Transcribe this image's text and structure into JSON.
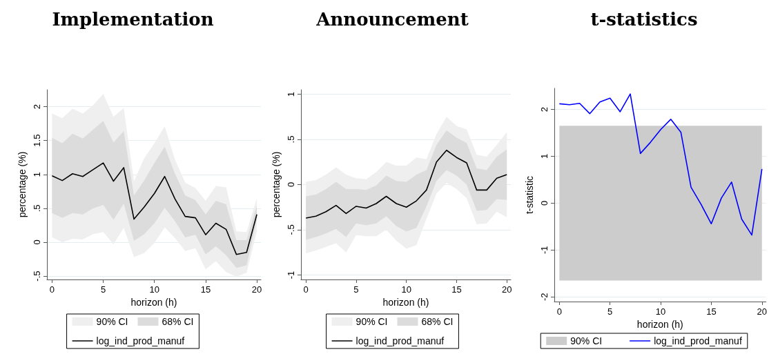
{
  "chart_data": [
    {
      "type": "line",
      "title": "Implementation",
      "xlabel": "horizon (h)",
      "ylabel": "percentage (%)",
      "x": [
        0,
        1,
        2,
        3,
        4,
        5,
        6,
        7,
        8,
        9,
        10,
        11,
        12,
        13,
        14,
        15,
        16,
        17,
        18,
        19,
        20
      ],
      "xlim": [
        -0.5,
        20.4
      ],
      "xticks": [
        0,
        5,
        10,
        15,
        20
      ],
      "ylim": [
        -0.55,
        2.25
      ],
      "yticks": [
        {
          "value": -0.5,
          "label": "-.5"
        },
        0,
        {
          "value": 0.5,
          "label": ".5"
        },
        1,
        {
          "value": 1.5,
          "label": "1.5"
        },
        2
      ],
      "grid": "y",
      "legend": "bottom",
      "series": [
        {
          "name": "90% CI",
          "color": "#efefef",
          "values": [
            null,
            null,
            null,
            null,
            null,
            null,
            null,
            null,
            null,
            null,
            null,
            null,
            null,
            null,
            null,
            null,
            null,
            null,
            null,
            null,
            null
          ],
          "lower": [
            0.07,
            0.0,
            0.05,
            0.04,
            0.12,
            0.15,
            -0.03,
            0.21,
            -0.22,
            -0.16,
            -0.01,
            0.22,
            0.06,
            -0.13,
            -0.09,
            -0.4,
            -0.28,
            -0.44,
            -0.51,
            -0.45,
            0.16
          ],
          "upper": [
            1.9,
            1.83,
            1.97,
            1.9,
            2.02,
            2.19,
            1.85,
            1.98,
            0.9,
            1.24,
            1.46,
            1.71,
            1.22,
            0.88,
            0.8,
            0.61,
            0.83,
            0.81,
            0.16,
            0.15,
            0.65
          ]
        },
        {
          "name": "68% CI",
          "color": "#dcdcdc",
          "values": [
            null,
            null,
            null,
            null,
            null,
            null,
            null,
            null,
            null,
            null,
            null,
            null,
            null,
            null,
            null,
            null,
            null,
            null,
            null,
            null,
            null
          ],
          "lower": [
            0.43,
            0.36,
            0.43,
            0.41,
            0.5,
            0.55,
            0.33,
            0.57,
            0.02,
            0.12,
            0.28,
            0.51,
            0.31,
            0.07,
            0.11,
            -0.18,
            -0.06,
            -0.19,
            -0.38,
            -0.34,
            0.33
          ],
          "upper": [
            1.54,
            1.46,
            1.6,
            1.53,
            1.66,
            1.79,
            1.47,
            1.64,
            0.69,
            0.91,
            1.17,
            1.41,
            1.01,
            0.69,
            0.62,
            0.41,
            0.61,
            0.56,
            0.03,
            0.03,
            0.54
          ]
        },
        {
          "name": "log_ind_prod_manuf",
          "color": "#000000",
          "values": [
            0.98,
            0.91,
            1.01,
            0.97,
            1.07,
            1.17,
            0.9,
            1.1,
            0.34,
            0.52,
            0.72,
            0.97,
            0.64,
            0.38,
            0.36,
            0.11,
            0.28,
            0.19,
            -0.18,
            -0.15,
            0.41
          ]
        }
      ]
    },
    {
      "type": "line",
      "title": "Announcement",
      "xlabel": "horizon (h)",
      "ylabel": "percentage (%)",
      "x": [
        0,
        1,
        2,
        3,
        4,
        5,
        6,
        7,
        8,
        9,
        10,
        11,
        12,
        13,
        14,
        15,
        16,
        17,
        18,
        19,
        20
      ],
      "xlim": [
        -0.5,
        20.4
      ],
      "xticks": [
        0,
        5,
        10,
        15,
        20
      ],
      "ylim": [
        -1.05,
        1.05
      ],
      "yticks": [
        -1,
        {
          "value": -0.5,
          "label": "-.5"
        },
        0,
        {
          "value": 0.5,
          "label": ".5"
        },
        1
      ],
      "grid": "y",
      "legend": "bottom",
      "series": [
        {
          "name": "90% CI",
          "color": "#efefef",
          "values": [
            null,
            null,
            null,
            null,
            null,
            null,
            null,
            null,
            null,
            null,
            null,
            null,
            null,
            null,
            null,
            null,
            null,
            null,
            null,
            null,
            null
          ],
          "lower": [
            -0.76,
            -0.73,
            -0.69,
            -0.65,
            -0.75,
            -0.56,
            -0.57,
            -0.57,
            -0.5,
            -0.62,
            -0.71,
            -0.67,
            -0.38,
            -0.1,
            0.02,
            -0.05,
            -0.15,
            -0.44,
            -0.43,
            -0.3,
            -0.36
          ],
          "upper": [
            0.03,
            0.05,
            0.11,
            0.19,
            0.11,
            0.07,
            0.06,
            0.14,
            0.25,
            0.21,
            0.21,
            0.3,
            0.28,
            0.56,
            0.75,
            0.65,
            0.61,
            0.33,
            0.31,
            0.44,
            0.58
          ]
        },
        {
          "name": "68% CI",
          "color": "#dcdcdc",
          "values": [
            null,
            null,
            null,
            null,
            null,
            null,
            null,
            null,
            null,
            null,
            null,
            null,
            null,
            null,
            null,
            null,
            null,
            null,
            null,
            null,
            null
          ],
          "lower": [
            -0.61,
            -0.58,
            -0.54,
            -0.49,
            -0.58,
            -0.43,
            -0.45,
            -0.43,
            -0.35,
            -0.46,
            -0.52,
            -0.48,
            -0.24,
            0.04,
            0.16,
            0.1,
            0.0,
            -0.29,
            -0.28,
            -0.16,
            -0.17
          ],
          "upper": [
            -0.13,
            -0.11,
            -0.05,
            0.03,
            -0.05,
            -0.05,
            -0.06,
            -0.01,
            0.1,
            0.04,
            0.03,
            0.11,
            0.16,
            0.44,
            0.6,
            0.52,
            0.46,
            0.18,
            0.16,
            0.31,
            0.39
          ]
        },
        {
          "name": "log_ind_prod_manuf",
          "color": "#000000",
          "values": [
            -0.37,
            -0.35,
            -0.3,
            -0.23,
            -0.32,
            -0.24,
            -0.26,
            -0.21,
            -0.13,
            -0.21,
            -0.25,
            -0.18,
            -0.06,
            0.25,
            0.38,
            0.3,
            0.24,
            -0.06,
            -0.06,
            0.07,
            0.11
          ]
        }
      ]
    },
    {
      "type": "line",
      "title": "t-statistics",
      "xlabel": "horizon (h)",
      "ylabel": "t-statistic",
      "x": [
        0,
        1,
        2,
        3,
        4,
        5,
        6,
        7,
        8,
        9,
        10,
        11,
        12,
        13,
        14,
        15,
        16,
        17,
        18,
        19,
        20
      ],
      "xlim": [
        -0.5,
        20.4
      ],
      "xticks": [
        0,
        5,
        10,
        15,
        20
      ],
      "ylim": [
        -2.1,
        2.45
      ],
      "yticks": [
        -2,
        -1,
        0,
        1,
        2
      ],
      "grid": "y",
      "legend": "bottom",
      "bands": [
        {
          "axis": "y",
          "from": -1.65,
          "to": 1.65,
          "label": "90% CI",
          "color": "#cccccc"
        }
      ],
      "series": [
        {
          "name": "log_ind_prod_manuf",
          "color": "#0000ff",
          "values": [
            2.12,
            2.1,
            2.13,
            1.91,
            2.16,
            2.24,
            1.95,
            2.33,
            1.06,
            1.3,
            1.57,
            1.79,
            1.51,
            0.34,
            -0.03,
            -0.44,
            0.11,
            0.45,
            -0.34,
            -0.68,
            0.73
          ]
        }
      ]
    }
  ]
}
